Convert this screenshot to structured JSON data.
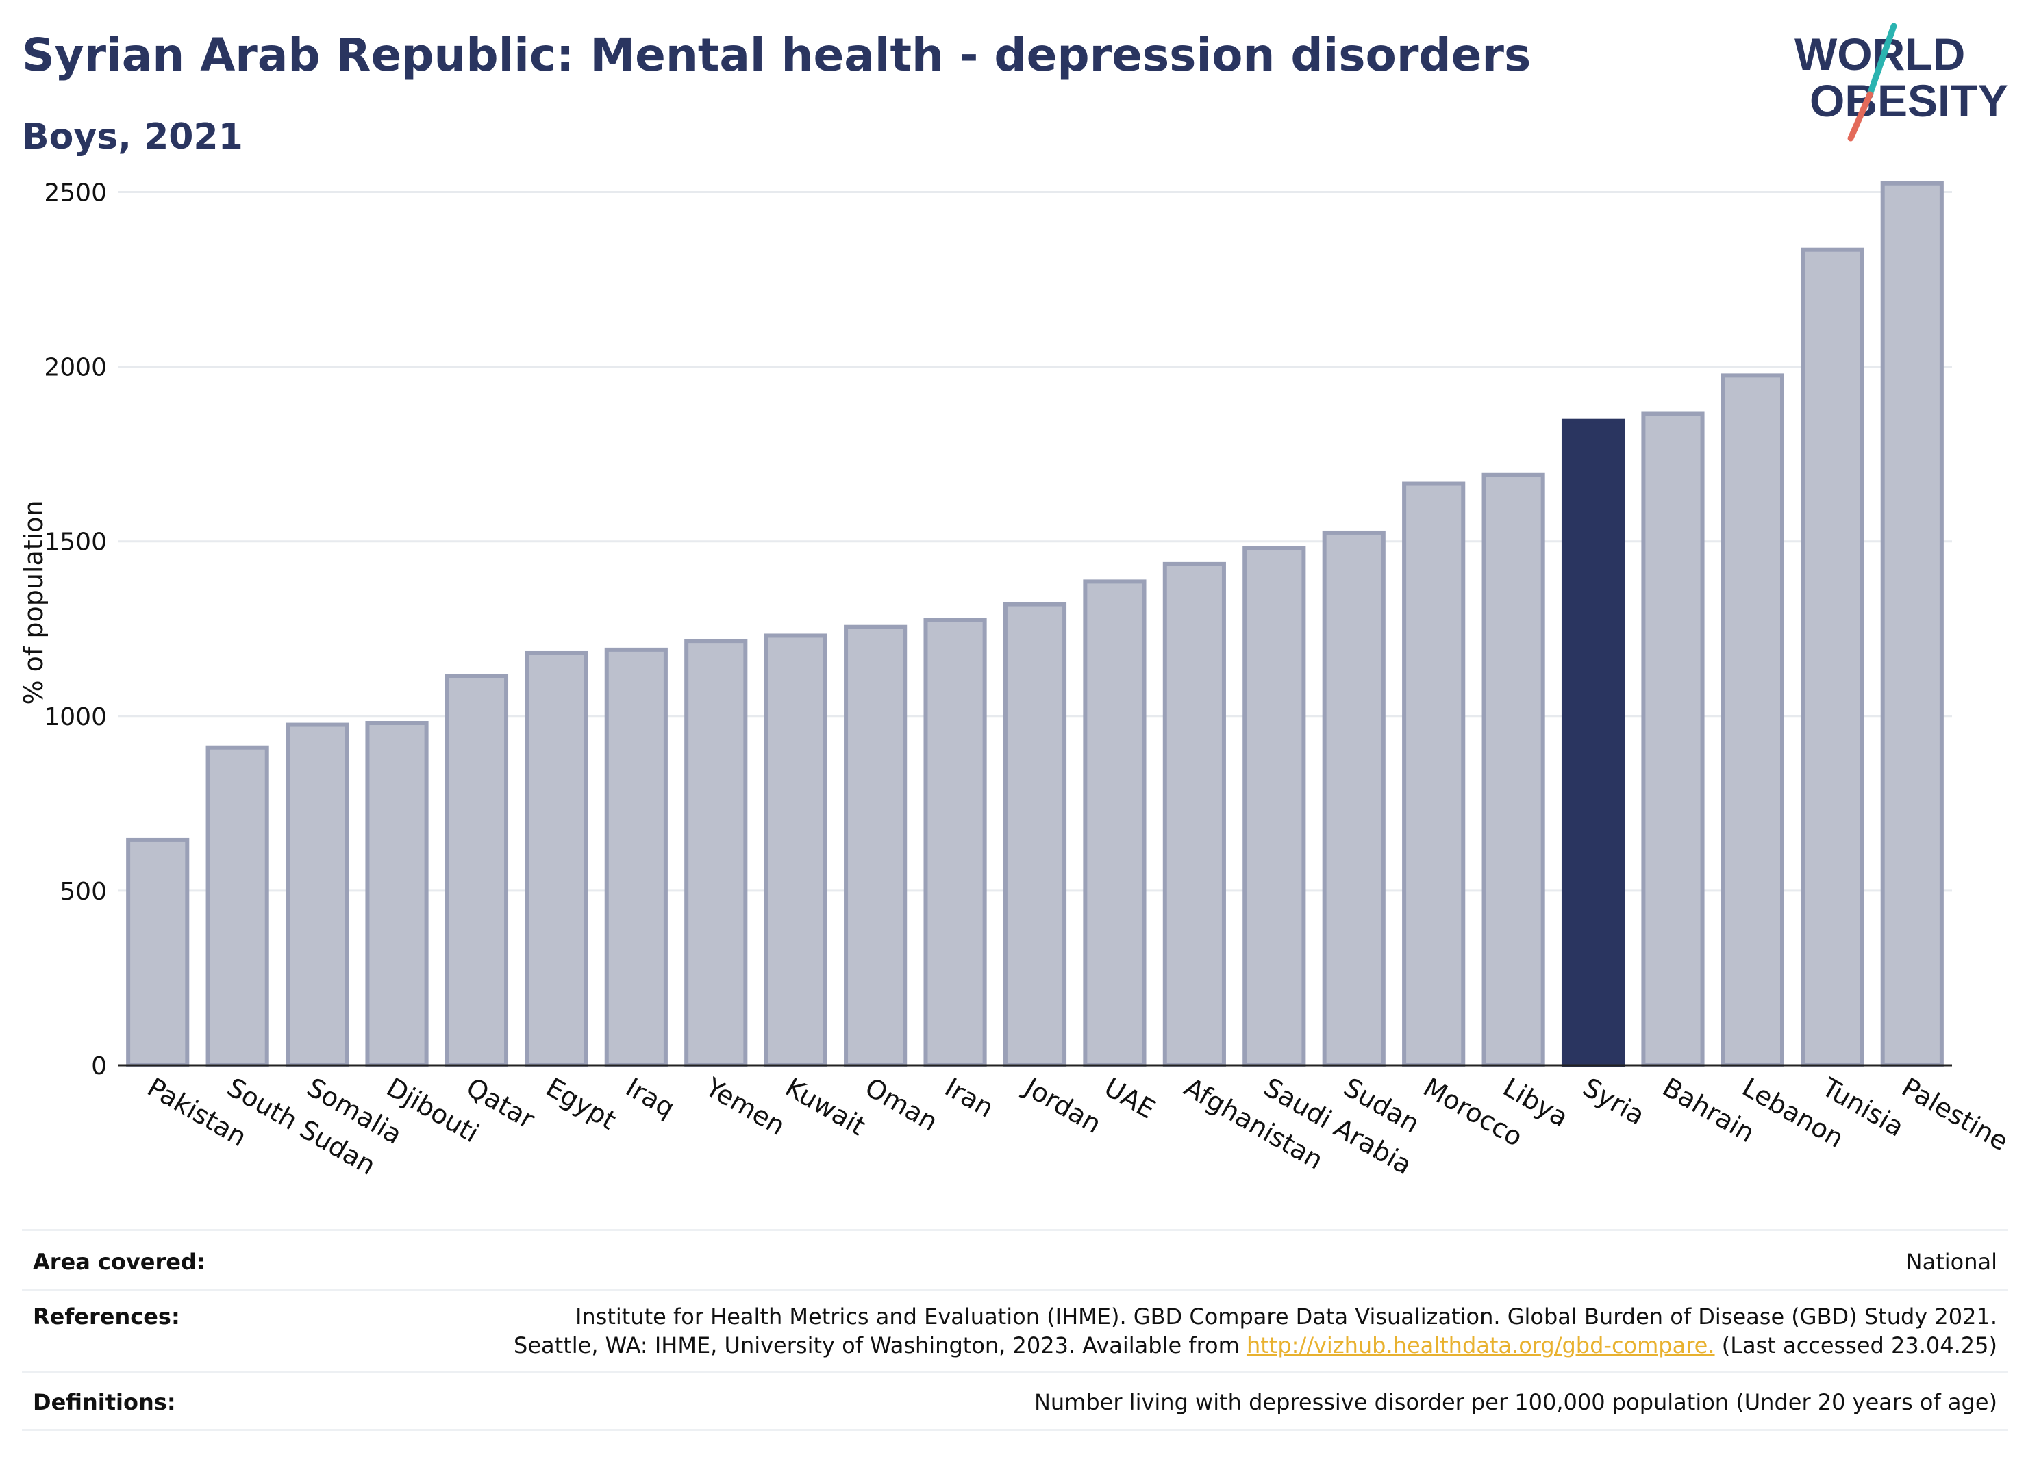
{
  "header": {
    "title": "Syrian Arab Republic: Mental health - depression disorders",
    "subtitle": "Boys, 2021",
    "logo_line1": "WORLD",
    "logo_line2": "OBESITY"
  },
  "colors": {
    "bar_fill": "#bcc0cd",
    "bar_stroke": "#9aa0b7",
    "highlight": "#2a3560",
    "grid": "#e7eaee",
    "logo_teal": "#2ab3b0",
    "logo_coral": "#e36a5a"
  },
  "chart_data": {
    "type": "bar",
    "title": "Syrian Arab Republic: Mental health - depression disorders",
    "subtitle": "Boys, 2021",
    "xlabel": "",
    "ylabel": "% of population",
    "ylim": [
      0,
      2650
    ],
    "yticks": [
      0,
      500,
      1000,
      1500,
      2000,
      2500
    ],
    "grid": true,
    "highlight": "Syria",
    "categories": [
      "Pakistan",
      "South Sudan",
      "Somalia",
      "Djibouti",
      "Qatar",
      "Egypt",
      "Iraq",
      "Yemen",
      "Kuwait",
      "Oman",
      "Iran",
      "Jordan",
      "UAE",
      "Afghanistan",
      "Saudi Arabia",
      "Sudan",
      "Morocco",
      "Libya",
      "Syria",
      "Bahrain",
      "Lebanon",
      "Tunisia",
      "Palestine"
    ],
    "values": [
      645,
      910,
      975,
      980,
      1115,
      1180,
      1190,
      1215,
      1230,
      1255,
      1275,
      1320,
      1385,
      1435,
      1480,
      1525,
      1665,
      1690,
      1845,
      1865,
      1975,
      2335,
      2525
    ]
  },
  "footer": {
    "area_label": "Area covered:",
    "area_value": "National",
    "ref_label": "References:",
    "ref_line1": "Institute for Health Metrics and Evaluation (IHME). GBD Compare Data Visualization. Global Burden of Disease (GBD) Study 2021.",
    "ref_line2_prefix": "Seattle, WA: IHME, University of Washington, 2023. Available from ",
    "ref_link": "http://vizhub.healthdata.org/gbd-compare.",
    "ref_line2_suffix": " (Last accessed 23.04.25)",
    "def_label": "Definitions:",
    "def_value": "Number living with depressive disorder per 100,000 population (Under 20 years of age)"
  }
}
